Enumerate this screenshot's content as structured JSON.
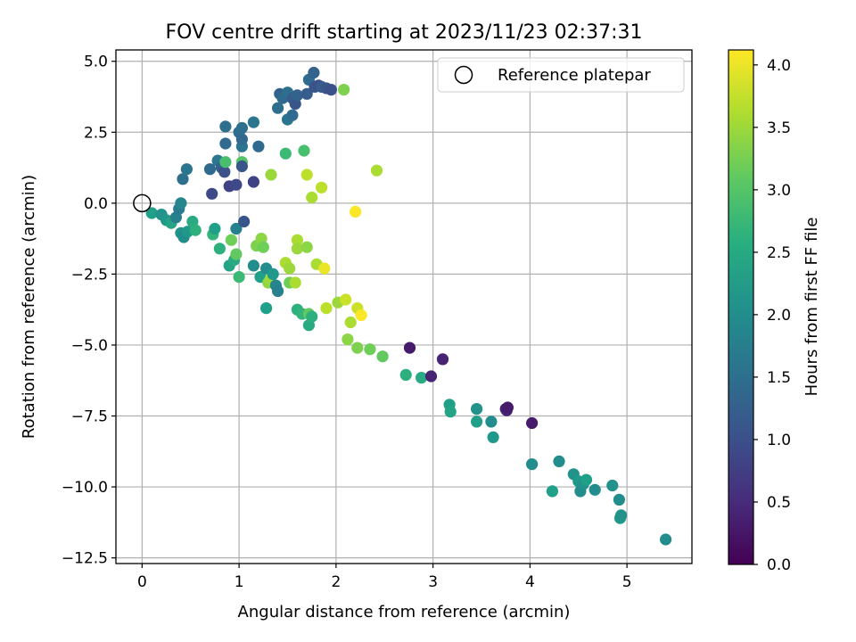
{
  "chart_data": {
    "type": "scatter",
    "title": "FOV centre drift starting at 2023/11/23 02:37:31",
    "xlabel": "Angular distance from reference (arcmin)",
    "ylabel": "Rotation from reference (arcmin)",
    "xlim": [
      -0.27,
      5.67
    ],
    "ylim": [
      -12.7,
      5.4
    ],
    "xticks": [
      0,
      1,
      2,
      3,
      4,
      5
    ],
    "yticks": [
      5.0,
      2.5,
      0.0,
      -2.5,
      -5.0,
      -7.5,
      -10.0,
      -12.5
    ],
    "xtick_labels": [
      "0",
      "1",
      "2",
      "3",
      "4",
      "5"
    ],
    "ytick_labels": [
      "5.0",
      "2.5",
      "0.0",
      "−2.5",
      "−5.0",
      "−7.5",
      "−10.0",
      "−12.5"
    ],
    "grid": true,
    "legend": {
      "placement": "top-right",
      "label": "Reference platepar",
      "marker": "open-circle"
    },
    "colorbar": {
      "label": "Hours from first FF file",
      "colormap": "viridis",
      "range": [
        0.0,
        4.12
      ],
      "ticks": [
        0.0,
        0.5,
        1.0,
        1.5,
        2.0,
        2.5,
        3.0,
        3.5,
        4.0
      ],
      "tick_labels": [
        "0.0",
        "0.5",
        "1.0",
        "1.5",
        "2.0",
        "2.5",
        "3.0",
        "3.5",
        "4.0"
      ]
    },
    "reference_point": {
      "x": 0.0,
      "y": 0.0
    },
    "points": [
      {
        "x": 0.1,
        "y": -0.35,
        "t": 2.3
      },
      {
        "x": 0.2,
        "y": -0.4,
        "t": 2.1
      },
      {
        "x": 0.25,
        "y": -0.6,
        "t": 2.2
      },
      {
        "x": 0.3,
        "y": -0.7,
        "t": 2.4
      },
      {
        "x": 0.35,
        "y": -0.5,
        "t": 1.8
      },
      {
        "x": 0.38,
        "y": -0.2,
        "t": 1.7
      },
      {
        "x": 0.4,
        "y": 0.0,
        "t": 1.9
      },
      {
        "x": 0.42,
        "y": 0.85,
        "t": 1.5
      },
      {
        "x": 0.46,
        "y": 1.2,
        "t": 1.6
      },
      {
        "x": 0.4,
        "y": -1.05,
        "t": 2.1
      },
      {
        "x": 0.43,
        "y": -1.2,
        "t": 2.0
      },
      {
        "x": 0.47,
        "y": -1.0,
        "t": 2.2
      },
      {
        "x": 0.52,
        "y": -0.65,
        "t": 2.5
      },
      {
        "x": 0.55,
        "y": -0.95,
        "t": 2.6
      },
      {
        "x": 0.7,
        "y": 1.2,
        "t": 1.4
      },
      {
        "x": 0.72,
        "y": 0.33,
        "t": 0.9
      },
      {
        "x": 0.73,
        "y": -1.1,
        "t": 2.7
      },
      {
        "x": 0.75,
        "y": -0.9,
        "t": 2.3
      },
      {
        "x": 0.78,
        "y": 1.5,
        "t": 1.6
      },
      {
        "x": 0.8,
        "y": -1.6,
        "t": 2.6
      },
      {
        "x": 0.82,
        "y": 1.25,
        "t": 1.3
      },
      {
        "x": 0.85,
        "y": 1.1,
        "t": 1.0
      },
      {
        "x": 0.86,
        "y": 1.45,
        "t": 2.9
      },
      {
        "x": 0.86,
        "y": 2.1,
        "t": 1.4
      },
      {
        "x": 0.86,
        "y": 2.7,
        "t": 1.5
      },
      {
        "x": 0.9,
        "y": 0.6,
        "t": 0.8
      },
      {
        "x": 0.9,
        "y": -2.2,
        "t": 2.4
      },
      {
        "x": 0.92,
        "y": -1.3,
        "t": 3.2
      },
      {
        "x": 0.95,
        "y": -2.0,
        "t": 2.5
      },
      {
        "x": 0.97,
        "y": 0.65,
        "t": 0.9
      },
      {
        "x": 0.97,
        "y": -1.8,
        "t": 3.1
      },
      {
        "x": 0.97,
        "y": -0.9,
        "t": 1.8
      },
      {
        "x": 1.0,
        "y": 2.5,
        "t": 1.5
      },
      {
        "x": 1.0,
        "y": -2.6,
        "t": 2.8
      },
      {
        "x": 1.03,
        "y": 1.45,
        "t": 3.0
      },
      {
        "x": 1.03,
        "y": 2.0,
        "t": 1.6
      },
      {
        "x": 1.03,
        "y": 2.25,
        "t": 1.4
      },
      {
        "x": 1.03,
        "y": 2.65,
        "t": 1.5
      },
      {
        "x": 1.03,
        "y": 1.3,
        "t": 1.1
      },
      {
        "x": 1.05,
        "y": -0.65,
        "t": 1.1
      },
      {
        "x": 1.15,
        "y": 2.85,
        "t": 1.6
      },
      {
        "x": 1.15,
        "y": 0.75,
        "t": 0.8
      },
      {
        "x": 1.15,
        "y": -2.2,
        "t": 2.0
      },
      {
        "x": 1.18,
        "y": -1.5,
        "t": 3.3
      },
      {
        "x": 1.2,
        "y": 2.0,
        "t": 1.4
      },
      {
        "x": 1.22,
        "y": -2.6,
        "t": 2.3
      },
      {
        "x": 1.23,
        "y": -1.25,
        "t": 3.4
      },
      {
        "x": 1.25,
        "y": -1.55,
        "t": 3.2
      },
      {
        "x": 1.28,
        "y": -2.3,
        "t": 2.0
      },
      {
        "x": 1.28,
        "y": -3.7,
        "t": 2.3
      },
      {
        "x": 1.3,
        "y": -2.8,
        "t": 3.4
      },
      {
        "x": 1.32,
        "y": -2.7,
        "t": 3.5
      },
      {
        "x": 1.33,
        "y": 1.0,
        "t": 3.5
      },
      {
        "x": 1.35,
        "y": -2.5,
        "t": 2.2
      },
      {
        "x": 1.38,
        "y": -2.9,
        "t": 1.9
      },
      {
        "x": 1.4,
        "y": -3.1,
        "t": 1.8
      },
      {
        "x": 1.4,
        "y": 3.35,
        "t": 1.5
      },
      {
        "x": 1.42,
        "y": 3.85,
        "t": 1.3
      },
      {
        "x": 1.45,
        "y": 3.7,
        "t": 1.4
      },
      {
        "x": 1.48,
        "y": 1.75,
        "t": 2.8
      },
      {
        "x": 1.48,
        "y": -2.1,
        "t": 3.6
      },
      {
        "x": 1.5,
        "y": 3.9,
        "t": 1.5
      },
      {
        "x": 1.5,
        "y": 2.95,
        "t": 1.6
      },
      {
        "x": 1.52,
        "y": -2.3,
        "t": 3.5
      },
      {
        "x": 1.52,
        "y": -2.8,
        "t": 3.2
      },
      {
        "x": 1.55,
        "y": 3.7,
        "t": 1.2
      },
      {
        "x": 1.55,
        "y": 3.1,
        "t": 1.4
      },
      {
        "x": 1.58,
        "y": 3.5,
        "t": 1.1
      },
      {
        "x": 1.58,
        "y": -2.8,
        "t": 3.6
      },
      {
        "x": 1.6,
        "y": -1.3,
        "t": 3.6
      },
      {
        "x": 1.6,
        "y": -1.6,
        "t": 3.5
      },
      {
        "x": 1.6,
        "y": 3.8,
        "t": 1.3
      },
      {
        "x": 1.6,
        "y": -3.75,
        "t": 2.6
      },
      {
        "x": 1.65,
        "y": -3.9,
        "t": 2.7
      },
      {
        "x": 1.67,
        "y": 1.85,
        "t": 2.9
      },
      {
        "x": 1.7,
        "y": 3.85,
        "t": 1.2
      },
      {
        "x": 1.7,
        "y": 1.0,
        "t": 3.7
      },
      {
        "x": 1.7,
        "y": -1.55,
        "t": 3.4
      },
      {
        "x": 1.72,
        "y": -4.3,
        "t": 2.5
      },
      {
        "x": 1.72,
        "y": -3.9,
        "t": 3.1
      },
      {
        "x": 1.72,
        "y": 4.35,
        "t": 1.4
      },
      {
        "x": 1.75,
        "y": 0.2,
        "t": 3.6
      },
      {
        "x": 1.75,
        "y": -4.0,
        "t": 2.6
      },
      {
        "x": 1.77,
        "y": 4.6,
        "t": 1.3
      },
      {
        "x": 1.78,
        "y": 4.1,
        "t": 1.1
      },
      {
        "x": 1.8,
        "y": -2.15,
        "t": 3.6
      },
      {
        "x": 1.82,
        "y": 4.15,
        "t": 1.0
      },
      {
        "x": 1.85,
        "y": 0.55,
        "t": 3.7
      },
      {
        "x": 1.85,
        "y": 4.1,
        "t": 1.2
      },
      {
        "x": 1.88,
        "y": -2.3,
        "t": 4.0
      },
      {
        "x": 1.9,
        "y": -3.7,
        "t": 3.7
      },
      {
        "x": 1.9,
        "y": 4.05,
        "t": 1.1
      },
      {
        "x": 1.95,
        "y": 4.0,
        "t": 1.0
      },
      {
        "x": 2.02,
        "y": -3.5,
        "t": 3.5
      },
      {
        "x": 2.08,
        "y": 4.0,
        "t": 3.3
      },
      {
        "x": 2.1,
        "y": -3.4,
        "t": 3.8
      },
      {
        "x": 2.12,
        "y": -4.8,
        "t": 3.4
      },
      {
        "x": 2.15,
        "y": -4.2,
        "t": 3.6
      },
      {
        "x": 2.2,
        "y": -0.3,
        "t": 4.1
      },
      {
        "x": 2.22,
        "y": -3.7,
        "t": 3.8
      },
      {
        "x": 2.22,
        "y": -5.1,
        "t": 3.3
      },
      {
        "x": 2.26,
        "y": -3.95,
        "t": 4.1
      },
      {
        "x": 2.35,
        "y": -5.15,
        "t": 3.2
      },
      {
        "x": 2.42,
        "y": 1.15,
        "t": 3.6
      },
      {
        "x": 2.48,
        "y": -5.4,
        "t": 3.1
      },
      {
        "x": 2.72,
        "y": -6.05,
        "t": 2.6
      },
      {
        "x": 2.76,
        "y": -5.1,
        "t": 0.3
      },
      {
        "x": 2.88,
        "y": -6.15,
        "t": 2.5
      },
      {
        "x": 2.98,
        "y": -6.1,
        "t": 0.4
      },
      {
        "x": 3.1,
        "y": -5.5,
        "t": 0.4
      },
      {
        "x": 3.17,
        "y": -7.1,
        "t": 2.3
      },
      {
        "x": 3.18,
        "y": -7.35,
        "t": 2.4
      },
      {
        "x": 3.45,
        "y": -7.25,
        "t": 2.1
      },
      {
        "x": 3.45,
        "y": -7.7,
        "t": 2.3
      },
      {
        "x": 3.6,
        "y": -7.7,
        "t": 2.0
      },
      {
        "x": 3.62,
        "y": -8.25,
        "t": 2.2
      },
      {
        "x": 3.75,
        "y": -7.25,
        "t": 0.35
      },
      {
        "x": 3.76,
        "y": -7.3,
        "t": 0.4
      },
      {
        "x": 3.77,
        "y": -7.2,
        "t": 0.3
      },
      {
        "x": 4.02,
        "y": -7.75,
        "t": 0.3
      },
      {
        "x": 4.02,
        "y": -9.2,
        "t": 2.0
      },
      {
        "x": 4.23,
        "y": -10.15,
        "t": 2.3
      },
      {
        "x": 4.3,
        "y": -9.1,
        "t": 2.0
      },
      {
        "x": 4.45,
        "y": -9.55,
        "t": 2.1
      },
      {
        "x": 4.5,
        "y": -9.8,
        "t": 2.2
      },
      {
        "x": 4.52,
        "y": -10.15,
        "t": 2.0
      },
      {
        "x": 4.55,
        "y": -9.9,
        "t": 2.1
      },
      {
        "x": 4.58,
        "y": -9.75,
        "t": 2.3
      },
      {
        "x": 4.67,
        "y": -10.1,
        "t": 2.0
      },
      {
        "x": 4.85,
        "y": -9.95,
        "t": 2.1
      },
      {
        "x": 4.92,
        "y": -10.45,
        "t": 2.0
      },
      {
        "x": 4.93,
        "y": -11.1,
        "t": 2.2
      },
      {
        "x": 4.94,
        "y": -11.0,
        "t": 2.1
      },
      {
        "x": 5.4,
        "y": -11.85,
        "t": 2.0
      }
    ]
  }
}
